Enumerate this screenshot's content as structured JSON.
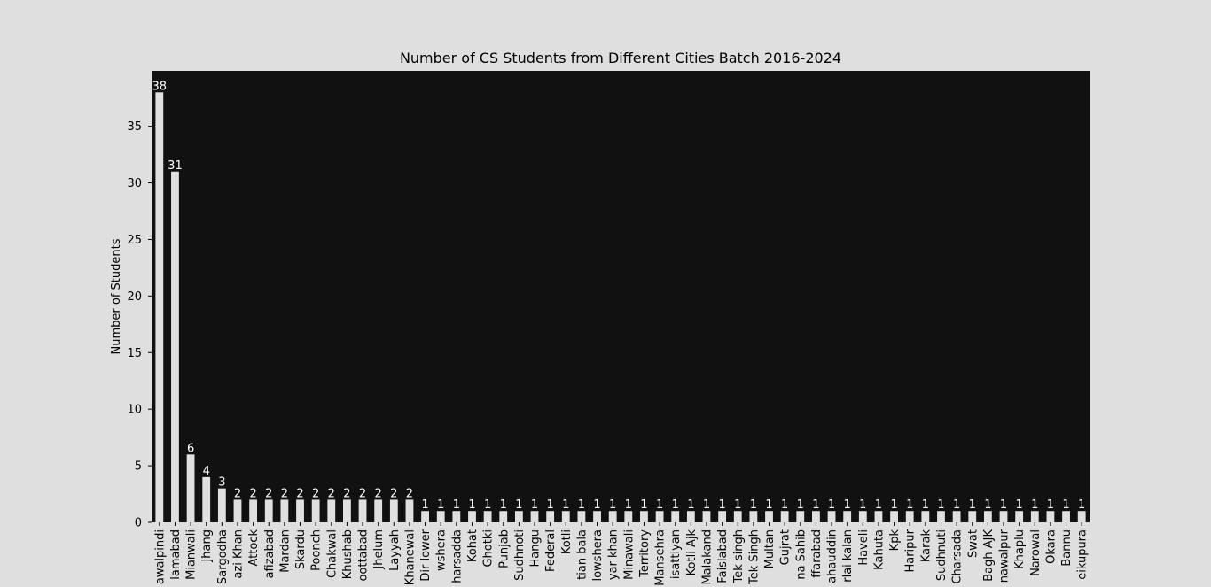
{
  "chart_data": {
    "type": "bar",
    "title": "Number of CS Students from Different Cities Batch 2016-2024",
    "xlabel": "",
    "ylabel": "Number of Students",
    "ylim": [
      0,
      39.9
    ],
    "yticks": [
      0,
      5,
      10,
      15,
      20,
      25,
      30,
      35
    ],
    "grid": false,
    "categories": [
      "awalpindi",
      "lamabad",
      "Mianwali",
      "Jhang",
      "Sargodha",
      "azi Khan",
      "Attock",
      "afizabad",
      "Mardan",
      "Skardu",
      "Poonch",
      "Chakwal",
      "Khushab",
      "oottabad",
      "Jhelum",
      "Layyah",
      "Khanewal",
      "Dir lower",
      "wshera",
      "harsadda",
      "Kohat",
      "Ghotki",
      "Punjab",
      "Sudhnoti",
      "Hangu",
      "Federal",
      "Kotli",
      "tian bala",
      "lowshera",
      "yar khan",
      "Minawali",
      "Territory",
      "Mansehra",
      "isattiyan",
      "Kotli Ajk",
      "Malakand",
      "Faislabad",
      "Tek singh",
      "Tek Singh",
      "Multan",
      "Gujrat",
      "na Sahib",
      "ffarabad",
      "ahauddin",
      "rlai kalan",
      "Haveli",
      "Kahuta",
      "Kpk",
      "Haripur",
      "Karak",
      "Sudhnuti",
      "Charsada",
      "Swat",
      "Bagh AJK",
      "nawalpur",
      "Khaplu",
      "Narowal",
      "Okara",
      "Bannu",
      "eikupura"
    ],
    "values": [
      38,
      31,
      6,
      4,
      3,
      2,
      2,
      2,
      2,
      2,
      2,
      2,
      2,
      2,
      2,
      2,
      2,
      1,
      1,
      1,
      1,
      1,
      1,
      1,
      1,
      1,
      1,
      1,
      1,
      1,
      1,
      1,
      1,
      1,
      1,
      1,
      1,
      1,
      1,
      1,
      1,
      1,
      1,
      1,
      1,
      1,
      1,
      1,
      1,
      1,
      1,
      1,
      1,
      1,
      1,
      1,
      1,
      1,
      1,
      1
    ],
    "colors": {
      "figure_bg": "#dfdfdf",
      "plot_bg": "#111111",
      "bar": "#e0e0e0",
      "bar_label": "#ffffff",
      "text": "#000000"
    }
  }
}
